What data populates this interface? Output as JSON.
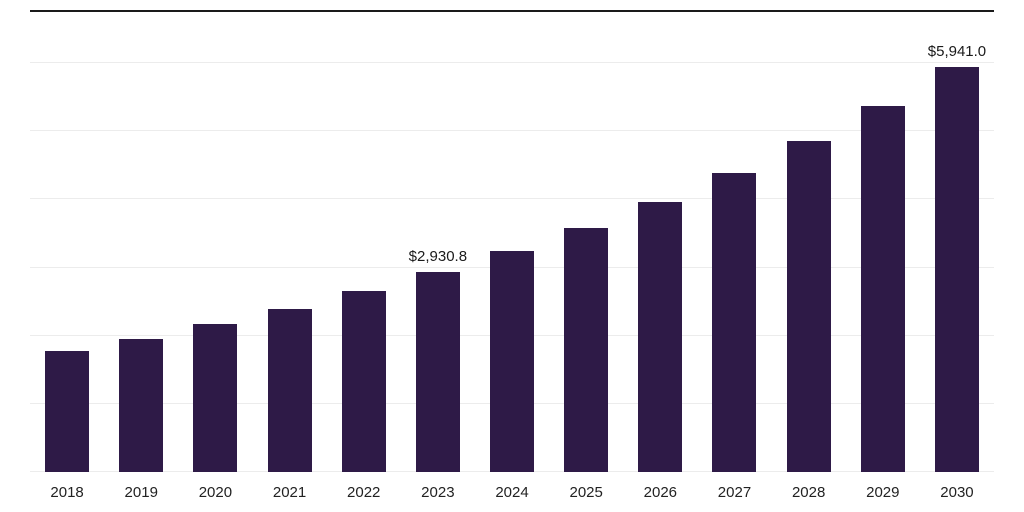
{
  "chart_data": {
    "type": "bar",
    "title": "",
    "xlabel": "",
    "ylabel": "",
    "categories": [
      "2018",
      "2019",
      "2020",
      "2021",
      "2022",
      "2023",
      "2024",
      "2025",
      "2026",
      "2027",
      "2028",
      "2029",
      "2030"
    ],
    "values": [
      1770,
      1957,
      2165,
      2395,
      2649,
      2930.8,
      3241,
      3585,
      3966,
      4387,
      4853,
      5369,
      5941.0
    ],
    "data_labels": [
      {
        "index": 5,
        "text": "$2,930.8"
      },
      {
        "index": 12,
        "text": "$5,941.0"
      }
    ],
    "ylim": [
      0,
      6000
    ],
    "grid_step": 1000,
    "grid": "on",
    "legend": "none",
    "colors": {
      "bar": "#2e1a47",
      "gridline": "#ececec",
      "top_rule": "#1a1a1a",
      "value_label": "#1a1a1a",
      "axis_label": "#222222",
      "background": "#ffffff"
    }
  }
}
